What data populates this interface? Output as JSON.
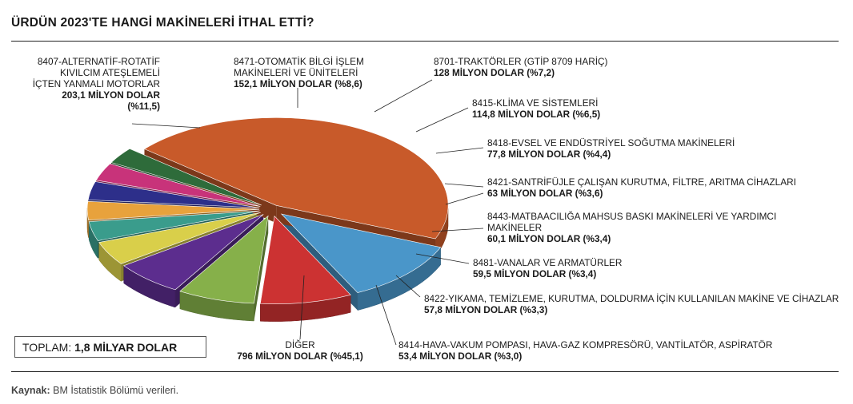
{
  "title": "ÜRDÜN 2023'TE HANGİ MAKİNELERİ İTHAL ETTİ?",
  "total": {
    "label": "TOPLAM:",
    "value": "1,8 MİLYAR DOLAR"
  },
  "source": {
    "label": "Kaynak:",
    "text": "BM İstatistik Bölümü verileri."
  },
  "chart_data": {
    "type": "pie",
    "unit": "milyon dolar",
    "slices": [
      {
        "name": "DİĞER",
        "value": 796,
        "value_label": "796 MİLYON DOLAR (%45,1)",
        "color": "#c85a2a"
      },
      {
        "name": "8407-ALTERNATİF-ROTATİF KIVILCIM ATEŞLEMELİ İÇTEN YANMALI MOTORLAR",
        "value": 203.1,
        "value_label": "203,1 MİLYON DOLAR (%11,5)",
        "color": "#4a96c9"
      },
      {
        "name": "8471-OTOMATİK BİLGİ İŞLEM MAKİNELERİ VE ÜNİTELERİ",
        "value": 152.1,
        "value_label": "152,1 MİLYON DOLAR (%8,6)",
        "color": "#cc3232"
      },
      {
        "name": "8701-TRAKTÖRLER (GTİP 8709 HARİÇ)",
        "value": 128,
        "value_label": "128 MİLYON DOLAR (%7,2)",
        "color": "#86b04a"
      },
      {
        "name": "8415-KLİMA VE SİSTEMLERİ",
        "value": 114.8,
        "value_label": "114,8 MİLYON DOLAR (%6,5)",
        "color": "#5c2d8e"
      },
      {
        "name": "8418-EVSEL VE ENDÜSTRİYEL SOĞUTMA MAKİNELERİ",
        "value": 77.8,
        "value_label": "77,8 MİLYON DOLAR (%4,4)",
        "color": "#d9cf4a"
      },
      {
        "name": "8421-SANTRİFÜJLE ÇALIŞAN KURUTMA, FİLTRE, ARITMA CİHAZLARI",
        "value": 63,
        "value_label": "63 MİLYON DOLAR (%3,6)",
        "color": "#3a9c8c"
      },
      {
        "name": "8443-MATBAACILIĞA MAHSUS BASKI MAKİNELERİ VE YARDIMCI MAKİNELER",
        "value": 60.1,
        "value_label": "60,1 MİLYON DOLAR (%3,4)",
        "color": "#e8a23c"
      },
      {
        "name": "8481-VANALAR VE ARMATÜRLER",
        "value": 59.5,
        "value_label": "59,5 MİLYON DOLAR (%3,4)",
        "color": "#2d2f8a"
      },
      {
        "name": "8422-YIKAMA, TEMİZLEME, KURUTMA, DOLDURMA İÇİN KULLANILAN MAKİNE VE CİHAZLAR",
        "value": 57.8,
        "value_label": "57,8 MİLYON DOLAR (%3,3)",
        "color": "#c8337a"
      },
      {
        "name": "8414-HAVA-VAKUM POMPASI, HAVA-GAZ KOMPRESÖRÜ, VANTİLATÖR, ASPİRATÖR",
        "value": 53.4,
        "value_label": "53,4 MİLYON DOLAR (%3,0)",
        "color": "#2e6b3a"
      }
    ]
  }
}
